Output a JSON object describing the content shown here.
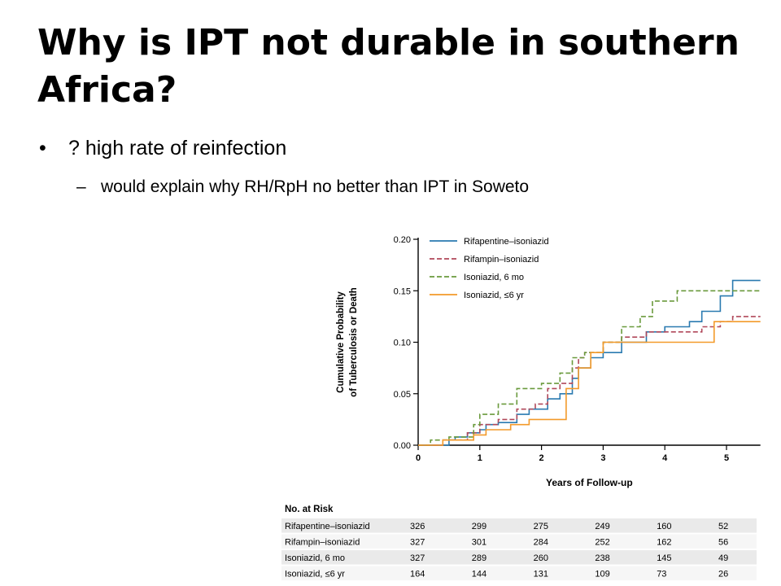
{
  "slide": {
    "title": "Why is IPT not durable in southern Africa?",
    "bullets": [
      {
        "marker": "•",
        "text": "? high rate of reinfection"
      },
      {
        "marker": "–",
        "text": "would explain why RH/RpH no better than IPT in Soweto"
      }
    ]
  },
  "chart_data": {
    "type": "line",
    "step": true,
    "xlabel": "Years of Follow-up",
    "ylabel_lines": [
      "Cumulative Probability",
      "of Tuberculosis or Death"
    ],
    "xlim": [
      0,
      5.55
    ],
    "ylim": [
      0,
      0.2
    ],
    "xticks": [
      "0",
      "1",
      "2",
      "3",
      "4",
      "5"
    ],
    "yticks": [
      "0.00",
      "0.05",
      "0.10",
      "0.15",
      "0.20"
    ],
    "legend_position": "top-left",
    "series": [
      {
        "name": "Rifapentine–isoniazid",
        "color": "#2a7ab0",
        "dash": "",
        "points": [
          [
            0,
            0
          ],
          [
            0.3,
            0
          ],
          [
            0.5,
            0.005
          ],
          [
            0.6,
            0.008
          ],
          [
            0.8,
            0.012
          ],
          [
            1.0,
            0.015
          ],
          [
            1.1,
            0.02
          ],
          [
            1.3,
            0.022
          ],
          [
            1.6,
            0.03
          ],
          [
            1.8,
            0.035
          ],
          [
            2.1,
            0.045
          ],
          [
            2.3,
            0.05
          ],
          [
            2.5,
            0.065
          ],
          [
            2.6,
            0.075
          ],
          [
            2.8,
            0.085
          ],
          [
            3.0,
            0.09
          ],
          [
            3.3,
            0.1
          ],
          [
            3.7,
            0.11
          ],
          [
            4.0,
            0.115
          ],
          [
            4.4,
            0.12
          ],
          [
            4.6,
            0.13
          ],
          [
            4.9,
            0.145
          ],
          [
            5.1,
            0.16
          ],
          [
            5.55,
            0.16
          ]
        ]
      },
      {
        "name": "Rifampin–isoniazid",
        "color": "#b0485a",
        "dash": "6,3",
        "points": [
          [
            0,
            0
          ],
          [
            0.4,
            0.005
          ],
          [
            0.8,
            0.012
          ],
          [
            1.0,
            0.02
          ],
          [
            1.3,
            0.025
          ],
          [
            1.6,
            0.035
          ],
          [
            1.9,
            0.04
          ],
          [
            2.1,
            0.055
          ],
          [
            2.3,
            0.06
          ],
          [
            2.5,
            0.075
          ],
          [
            2.6,
            0.085
          ],
          [
            2.7,
            0.09
          ],
          [
            3.0,
            0.1
          ],
          [
            3.3,
            0.105
          ],
          [
            3.7,
            0.11
          ],
          [
            4.4,
            0.11
          ],
          [
            4.6,
            0.115
          ],
          [
            4.9,
            0.12
          ],
          [
            5.1,
            0.125
          ],
          [
            5.55,
            0.125
          ]
        ]
      },
      {
        "name": "Isoniazid, 6 mo",
        "color": "#6a9a3c",
        "dash": "6,3",
        "points": [
          [
            0,
            0
          ],
          [
            0.2,
            0.005
          ],
          [
            0.5,
            0.008
          ],
          [
            0.9,
            0.02
          ],
          [
            1.0,
            0.03
          ],
          [
            1.3,
            0.04
          ],
          [
            1.6,
            0.055
          ],
          [
            2.0,
            0.06
          ],
          [
            2.3,
            0.07
          ],
          [
            2.5,
            0.085
          ],
          [
            2.7,
            0.09
          ],
          [
            3.0,
            0.1
          ],
          [
            3.3,
            0.115
          ],
          [
            3.6,
            0.125
          ],
          [
            3.8,
            0.14
          ],
          [
            4.2,
            0.15
          ],
          [
            4.6,
            0.15
          ],
          [
            5.0,
            0.15
          ],
          [
            5.55,
            0.15
          ]
        ]
      },
      {
        "name": "Isoniazid, ≤6 yr",
        "color": "#f39a2a",
        "dash": "",
        "points": [
          [
            0,
            0
          ],
          [
            0.4,
            0.005
          ],
          [
            0.9,
            0.01
          ],
          [
            1.1,
            0.015
          ],
          [
            1.5,
            0.02
          ],
          [
            1.8,
            0.025
          ],
          [
            2.1,
            0.025
          ],
          [
            2.4,
            0.055
          ],
          [
            2.6,
            0.075
          ],
          [
            2.8,
            0.09
          ],
          [
            3.0,
            0.1
          ],
          [
            3.3,
            0.1
          ],
          [
            3.6,
            0.1
          ],
          [
            4.0,
            0.1
          ],
          [
            4.6,
            0.1
          ],
          [
            4.8,
            0.12
          ],
          [
            5.55,
            0.12
          ]
        ]
      }
    ]
  },
  "risk_table": {
    "header": "No. at Risk",
    "rows": [
      {
        "label": "Rifapentine–isoniazid",
        "values": [
          "326",
          "299",
          "275",
          "249",
          "160",
          "52"
        ]
      },
      {
        "label": "Rifampin–isoniazid",
        "values": [
          "327",
          "301",
          "284",
          "252",
          "162",
          "56"
        ]
      },
      {
        "label": "Isoniazid, 6 mo",
        "values": [
          "327",
          "289",
          "260",
          "238",
          "145",
          "49"
        ]
      },
      {
        "label": "Isoniazid, ≤6 yr",
        "values": [
          "164",
          "144",
          "131",
          "109",
          "73",
          "26"
        ]
      }
    ]
  }
}
